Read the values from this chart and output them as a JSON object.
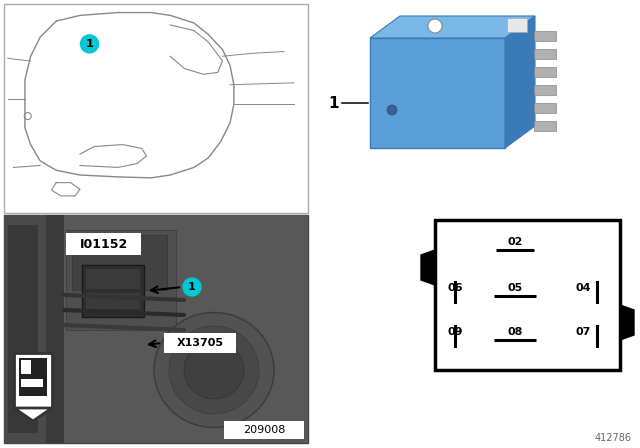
{
  "bg_color": "#ffffff",
  "cyan_color": "#00c8d4",
  "diagram_number": "412786",
  "photo_label": "209008",
  "connector_label": "I01152",
  "photo_connector": "X13705",
  "relay_label": "1",
  "relay_blue_main": "#5b9fd8",
  "relay_blue_light": "#7ab8e8",
  "relay_blue_dark": "#3a7ab8",
  "relay_blue_top": "#6aaee0",
  "pin_color": "#b0b0b0",
  "car_line_color": "#888888",
  "border_color": "#aaaaaa",
  "pin_diagram_labels": [
    "02",
    "06",
    "05",
    "04",
    "09",
    "08",
    "07"
  ]
}
